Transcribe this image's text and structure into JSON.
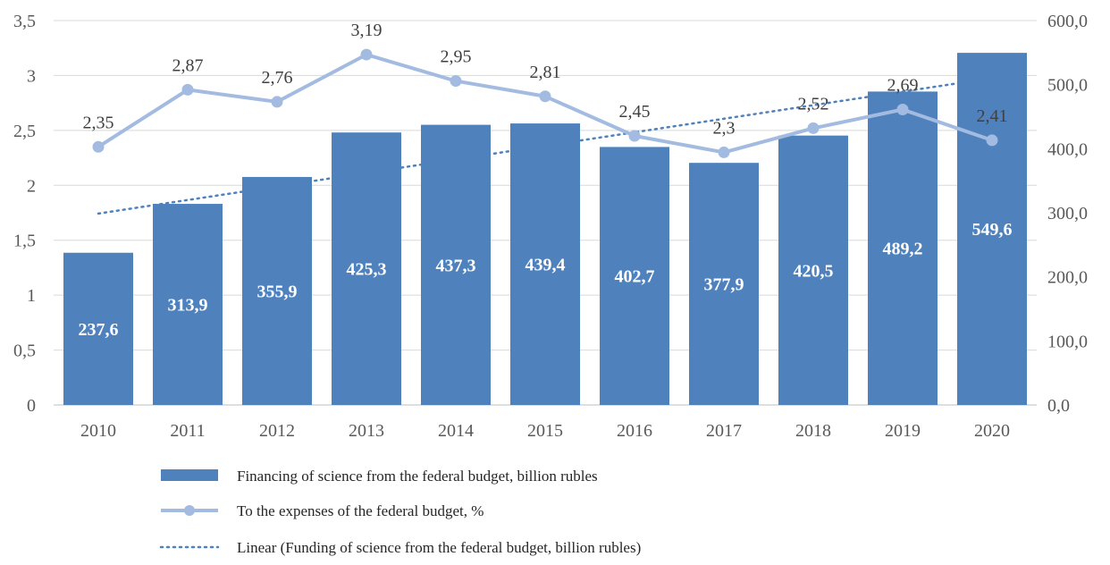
{
  "chart_data": {
    "type": "bar",
    "categories": [
      "2010",
      "2011",
      "2012",
      "2013",
      "2014",
      "2015",
      "2016",
      "2017",
      "2018",
      "2019",
      "2020"
    ],
    "series": [
      {
        "name": "Financing of science from the federal budget, billion rubles",
        "type": "bar",
        "axis": "right",
        "values": [
          237.6,
          313.9,
          355.9,
          425.3,
          437.3,
          439.4,
          402.7,
          377.9,
          420.5,
          489.2,
          549.6
        ],
        "labels": [
          "237,6",
          "313,9",
          "355,9",
          "425,3",
          "437,3",
          "439,4",
          "402,7",
          "377,9",
          "420,5",
          "489,2",
          "549,6"
        ],
        "color": "#4f81bd"
      },
      {
        "name": "To the expenses of the federal budget, %",
        "type": "line",
        "axis": "left",
        "values": [
          2.35,
          2.87,
          2.76,
          3.19,
          2.95,
          2.81,
          2.45,
          2.3,
          2.52,
          2.69,
          2.41
        ],
        "labels": [
          "2,35",
          "2,87",
          "2,76",
          "3,19",
          "2,95",
          "2,81",
          "2,45",
          "2,3",
          "2,52",
          "2,69",
          "2,41"
        ],
        "color": "#a3bbe0"
      },
      {
        "name": "Linear (Funding of science from the federal budget, billion rubles)",
        "type": "trendline",
        "axis": "right",
        "color": "#4f81bd"
      }
    ],
    "y_left": {
      "ylim": [
        0,
        3.5
      ],
      "ticks": [
        0,
        0.5,
        1,
        1.5,
        2,
        2.5,
        3,
        3.5
      ],
      "tick_labels": [
        "0",
        "0,5",
        "1",
        "1,5",
        "2",
        "2,5",
        "3",
        "3,5"
      ]
    },
    "y_right": {
      "ylim": [
        0,
        600
      ],
      "ticks": [
        0,
        100,
        200,
        300,
        400,
        500,
        600
      ],
      "tick_labels": [
        "0,0",
        "100,0",
        "200,0",
        "300,0",
        "400,0",
        "500,0",
        "600,0"
      ]
    },
    "grid": true,
    "legend_position": "bottom"
  }
}
